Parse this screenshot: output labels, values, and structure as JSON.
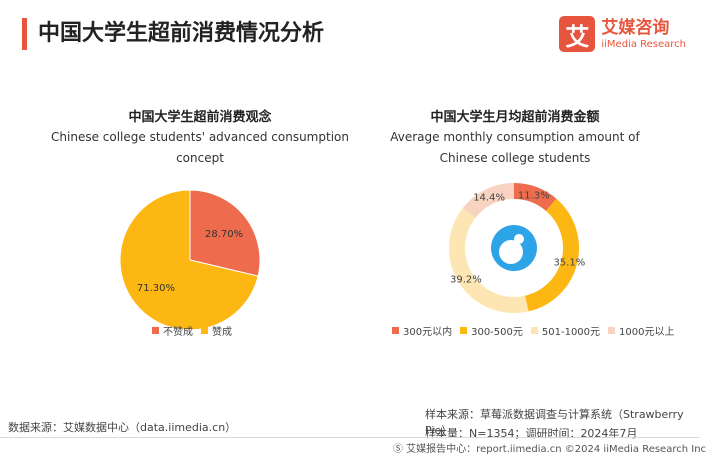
{
  "header": {
    "title": "中国大学生超前消费情况分析",
    "logo_mark": "艾",
    "logo_cn": "艾媒咨询",
    "logo_en": "iiMedia Research"
  },
  "chart_data": [
    {
      "type": "pie",
      "title": "中国大学生超前消费观念",
      "subtitle": "Chinese college students' advanced consumption concept",
      "categories": [
        "不赞成",
        "赞成"
      ],
      "values": [
        28.7,
        71.3
      ],
      "labels": [
        "28.70%",
        "71.30%"
      ],
      "colors": [
        "#ee6c4d",
        "#fcb712"
      ],
      "legend_position": "bottom"
    },
    {
      "type": "donut",
      "title": "中国大学生月均超前消费金额",
      "subtitle": "Average monthly consumption amount of Chinese college students",
      "categories": [
        "300元以内",
        "300-500元",
        "501-1000元",
        "1000元以上"
      ],
      "values": [
        11.3,
        35.1,
        39.2,
        14.4
      ],
      "labels": [
        "11.3%",
        "35.1%",
        "39.2%",
        "14.4%"
      ],
      "colors": [
        "#ee6c4d",
        "#fcb712",
        "#fde6b3",
        "#f9d3c2"
      ],
      "legend_position": "bottom"
    }
  ],
  "source": {
    "left": "数据来源：艾媒数据中心（data.iimedia.cn）",
    "sample_source": "样本来源：草莓派数据调查与计算系统（Strawberry Pie）",
    "sample_size": "样本量：N=1354；调研时间：2024年7月"
  },
  "footer": {
    "text": "Ⓢ 艾媒报告中心：report.iimedia.cn   ©2024  iiMedia Research  Inc"
  }
}
